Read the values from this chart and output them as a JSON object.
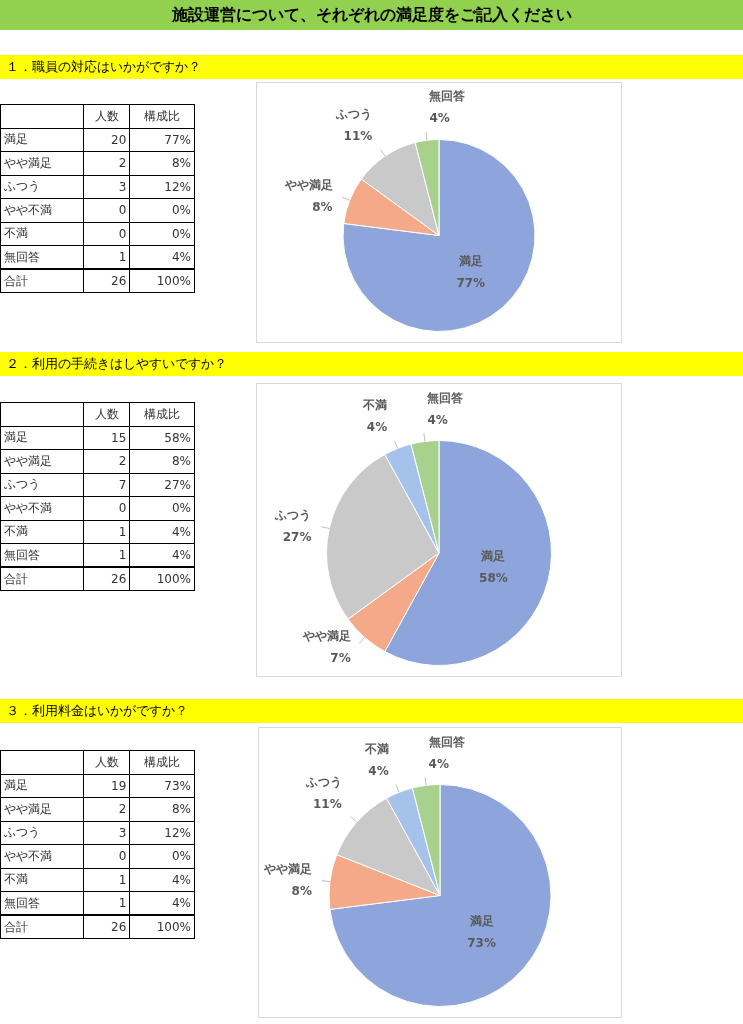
{
  "chart_data": [
    {
      "type": "other",
      "title": "施設運営について、それぞれの満足度をご記入ください",
      "subtitle": "１．職員の対応はいかがですか？",
      "categories": [
        "満足",
        "やや満足",
        "ふつう",
        "やや不満",
        "不満",
        "無回答",
        "合計"
      ],
      "series": [
        {
          "name": "人数",
          "values": [
            20,
            2,
            3,
            0,
            0,
            1,
            26
          ],
          "value_labels": [
            "20",
            "2",
            "3",
            "0",
            "0",
            "1",
            "26"
          ]
        },
        {
          "name": "構成比",
          "values": [
            77,
            8,
            12,
            0,
            0,
            4,
            100
          ],
          "value_labels": [
            "77%",
            "8%",
            "12%",
            "0%",
            "0%",
            "4%",
            "100%"
          ]
        }
      ]
    },
    {
      "type": "pie",
      "categories": [
        "満足",
        "やや満足",
        "ふつう",
        "無回答"
      ],
      "values": [
        77,
        8,
        11,
        4
      ],
      "colors": [
        "#8ea5db",
        "#f4a988",
        "#c9c9c9",
        "#a9d18e"
      ],
      "value_labels": [
        "77%",
        "8%",
        "11%",
        "4%"
      ]
    },
    {
      "type": "other",
      "subtitle": "２．利用の手続きはしやすいですか？",
      "categories": [
        "満足",
        "やや満足",
        "ふつう",
        "やや不満",
        "不満",
        "無回答",
        "合計"
      ],
      "series": [
        {
          "name": "人数",
          "values": [
            15,
            2,
            7,
            0,
            1,
            1,
            26
          ],
          "value_labels": [
            "15",
            "2",
            "7",
            "0",
            "1",
            "1",
            "26"
          ]
        },
        {
          "name": "構成比",
          "values": [
            58,
            8,
            27,
            0,
            4,
            4,
            100
          ],
          "value_labels": [
            "58%",
            "8%",
            "27%",
            "0%",
            "4%",
            "4%",
            "100%"
          ]
        }
      ]
    },
    {
      "type": "pie",
      "categories": [
        "満足",
        "やや満足",
        "ふつう",
        "不満",
        "無回答"
      ],
      "values": [
        58,
        7,
        27,
        4,
        4
      ],
      "colors": [
        "#8ea5db",
        "#f4a988",
        "#c9c9c9",
        "#a4c2ea",
        "#a9d18e"
      ],
      "value_labels": [
        "58%",
        "7%",
        "27%",
        "4%",
        "4%"
      ]
    },
    {
      "type": "other",
      "subtitle": "３．利用料金はいかがですか？",
      "categories": [
        "満足",
        "やや満足",
        "ふつう",
        "やや不満",
        "不満",
        "無回答",
        "合計"
      ],
      "series": [
        {
          "name": "人数",
          "values": [
            19,
            2,
            3,
            0,
            1,
            1,
            26
          ],
          "value_labels": [
            "19",
            "2",
            "3",
            "0",
            "1",
            "1",
            "26"
          ]
        },
        {
          "name": "構成比",
          "values": [
            73,
            8,
            12,
            0,
            4,
            4,
            100
          ],
          "value_labels": [
            "73%",
            "8%",
            "12%",
            "0%",
            "4%",
            "4%",
            "100%"
          ]
        }
      ]
    },
    {
      "type": "pie",
      "categories": [
        "満足",
        "やや満足",
        "ふつう",
        "不満",
        "無回答"
      ],
      "values": [
        73,
        8,
        11,
        4,
        4
      ],
      "colors": [
        "#8ea5db",
        "#f4a988",
        "#c9c9c9",
        "#a4c2ea",
        "#a9d18e"
      ],
      "value_labels": [
        "73%",
        "8%",
        "11%",
        "4%",
        "4%"
      ]
    }
  ]
}
